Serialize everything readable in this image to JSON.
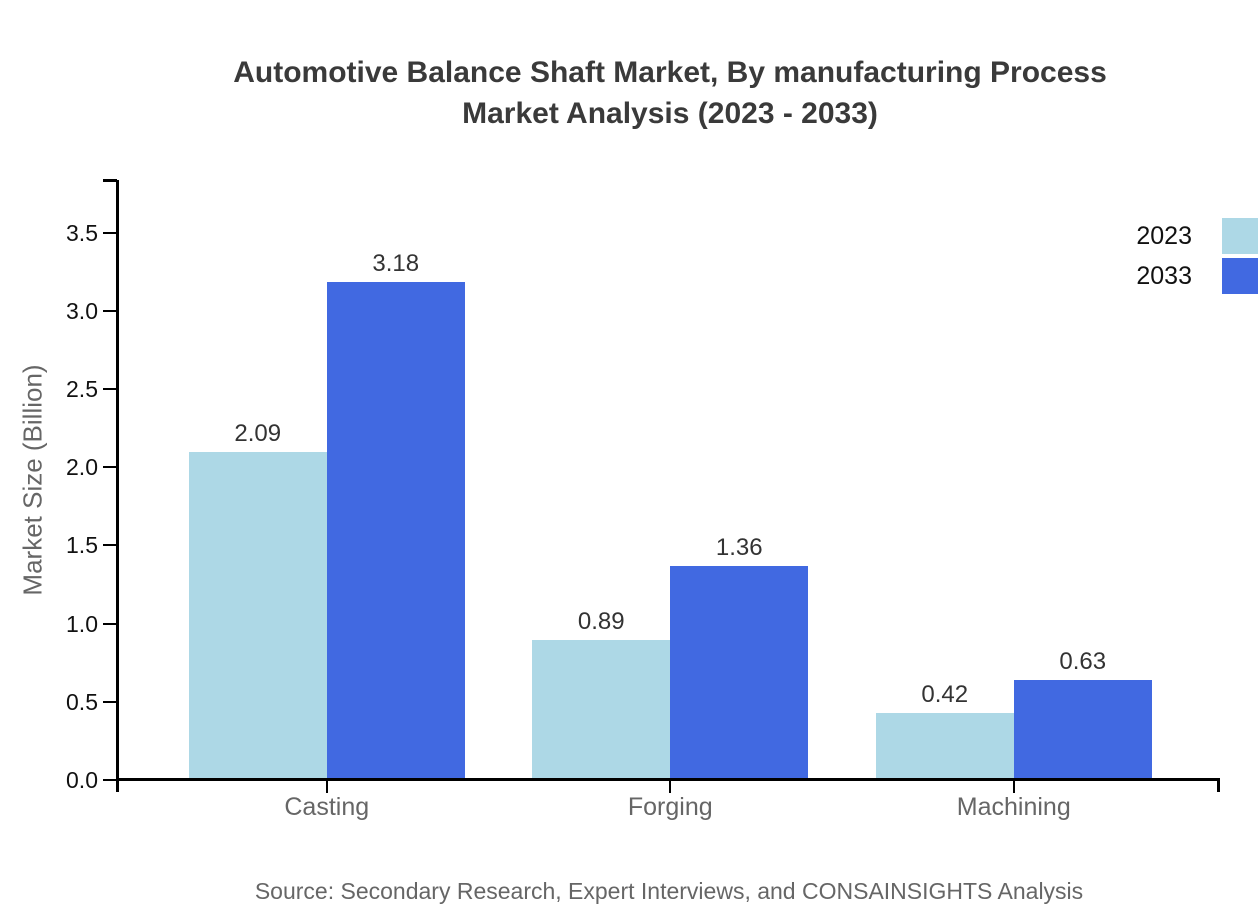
{
  "chart_data": {
    "type": "bar",
    "title": "Automotive Balance Shaft Market, By manufacturing Process Market Analysis (2023 - 2033)",
    "title_lines": [
      "Automotive Balance Shaft Market, By manufacturing Process",
      "Market Analysis (2023 - 2033)"
    ],
    "categories": [
      "Casting",
      "Forging",
      "Machining"
    ],
    "series": [
      {
        "name": "2023",
        "color": "#ADD8E6",
        "values": [
          2.09,
          0.89,
          0.42
        ]
      },
      {
        "name": "2033",
        "color": "#4169E1",
        "values": [
          3.18,
          1.36,
          0.63
        ]
      }
    ],
    "value_labels": [
      [
        "2.09",
        "0.89",
        "0.42"
      ],
      [
        "3.18",
        "1.36",
        "0.63"
      ]
    ],
    "xlabel": "",
    "ylabel": "Market Size (Billion)",
    "ylim": [
      0,
      3.85
    ],
    "yticks": [
      0.0,
      0.5,
      1.0,
      1.5,
      2.0,
      2.5,
      3.0,
      3.5
    ],
    "grid": false,
    "legend_position": "top-right",
    "axis_color": "#000000",
    "tick_label_color": "#111111",
    "category_label_color": "#666666",
    "title_color": "#3a3a3a",
    "source": "Source: Secondary Research, Expert Interviews, and CONSAINSIGHTS Analysis"
  }
}
